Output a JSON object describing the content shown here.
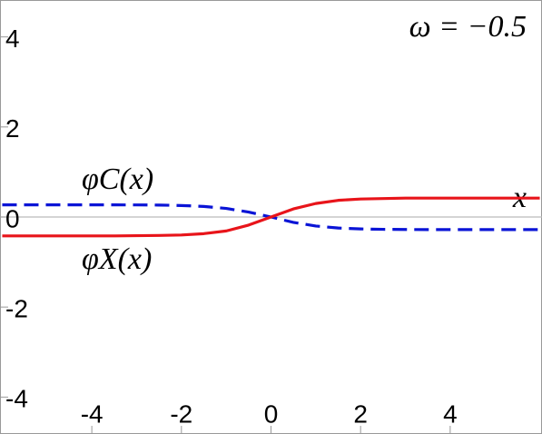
{
  "chart_data": {
    "type": "line",
    "annotations": [
      "ω = −0.5",
      "φC(x)",
      "φX(x)"
    ],
    "x_label": "x",
    "x": [
      -6,
      -5.5,
      -5,
      -4.5,
      -4,
      -3.5,
      -3,
      -2.5,
      -2,
      -1.5,
      -1,
      -0.5,
      0,
      0.5,
      1,
      1.5,
      2,
      2.5,
      3,
      3.5,
      4,
      4.5,
      5,
      5.5,
      6
    ],
    "series": [
      {
        "name": "φC(x)",
        "color": "#0a14d6",
        "dashed": true,
        "values": [
          0.27,
          0.27,
          0.27,
          0.27,
          0.27,
          0.27,
          0.268,
          0.265,
          0.255,
          0.235,
          0.19,
          0.11,
          0.0,
          -0.12,
          -0.2,
          -0.245,
          -0.265,
          -0.274,
          -0.277,
          -0.28,
          -0.28,
          -0.28,
          -0.28,
          -0.28,
          -0.28
        ]
      },
      {
        "name": "φX(x)",
        "color": "#e8141a",
        "dashed": false,
        "values": [
          -0.42,
          -0.42,
          -0.42,
          -0.42,
          -0.42,
          -0.42,
          -0.415,
          -0.41,
          -0.4,
          -0.37,
          -0.31,
          -0.18,
          0.0,
          0.18,
          0.3,
          0.37,
          0.4,
          0.41,
          0.42,
          0.42,
          0.42,
          0.42,
          0.42,
          0.42,
          0.42
        ]
      }
    ],
    "xlim": [
      -6.05,
      6.05
    ],
    "xticks": [
      -4,
      -2,
      0,
      2,
      4
    ],
    "ylim": [
      -4.82,
      4.82
    ],
    "yticks": [
      -4,
      -2,
      0,
      2,
      4
    ]
  }
}
